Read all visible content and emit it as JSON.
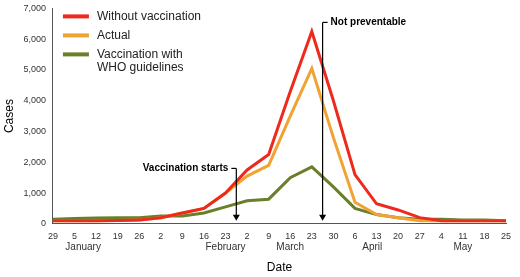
{
  "chart_data": {
    "type": "line",
    "categories": [
      "29",
      "5",
      "12",
      "19",
      "26",
      "2",
      "9",
      "16",
      "23",
      "2",
      "9",
      "16",
      "23",
      "30",
      "6",
      "13",
      "20",
      "27",
      "4",
      "11",
      "18",
      "25"
    ],
    "months": [
      {
        "label": "January",
        "x": 1.4
      },
      {
        "label": "February",
        "x": 8
      },
      {
        "label": "March",
        "x": 11
      },
      {
        "label": "April",
        "x": 14.8
      },
      {
        "label": "May",
        "x": 19
      }
    ],
    "x_label": "Date",
    "y_label": "Cases",
    "series": [
      {
        "name": "Without vaccination",
        "color": "#ee2a1e",
        "values": [
          100,
          100,
          100,
          110,
          120,
          200,
          350,
          500,
          1000,
          1750,
          2250,
          4300,
          6250,
          4000,
          1600,
          650,
          450,
          200,
          100,
          100,
          100,
          100
        ]
      },
      {
        "name": "Actual",
        "color": "#f0a232",
        "values": [
          100,
          100,
          100,
          110,
          120,
          200,
          350,
          500,
          1000,
          1550,
          1900,
          3500,
          5050,
          2800,
          700,
          300,
          200,
          100,
          100,
          100,
          100,
          100
        ]
      },
      {
        "name": "Vaccination with WHO guidelines",
        "color": "#6b7f2a",
        "values": [
          150,
          170,
          190,
          200,
          200,
          250,
          250,
          350,
          550,
          750,
          800,
          1500,
          1850,
          1200,
          500,
          300,
          200,
          150,
          150,
          120,
          120,
          100
        ]
      }
    ],
    "ylim": [
      0,
      7000
    ],
    "yticks": [
      0,
      {
        "value": 1000,
        "label": "1,000"
      },
      {
        "value": 2000,
        "label": "2,000"
      },
      {
        "value": 3000,
        "label": "3,000"
      },
      {
        "value": 4000,
        "label": "4,000"
      },
      {
        "value": 5000,
        "label": "5,000"
      },
      {
        "value": 6000,
        "label": "6,000"
      },
      {
        "value": 7000,
        "label": "7,000"
      }
    ],
    "grid": false,
    "legend": "upper left",
    "annotations": [
      {
        "text": "Vaccination starts",
        "x": 8.5
      },
      {
        "text": "Not preventable",
        "x": 12.5
      }
    ]
  }
}
